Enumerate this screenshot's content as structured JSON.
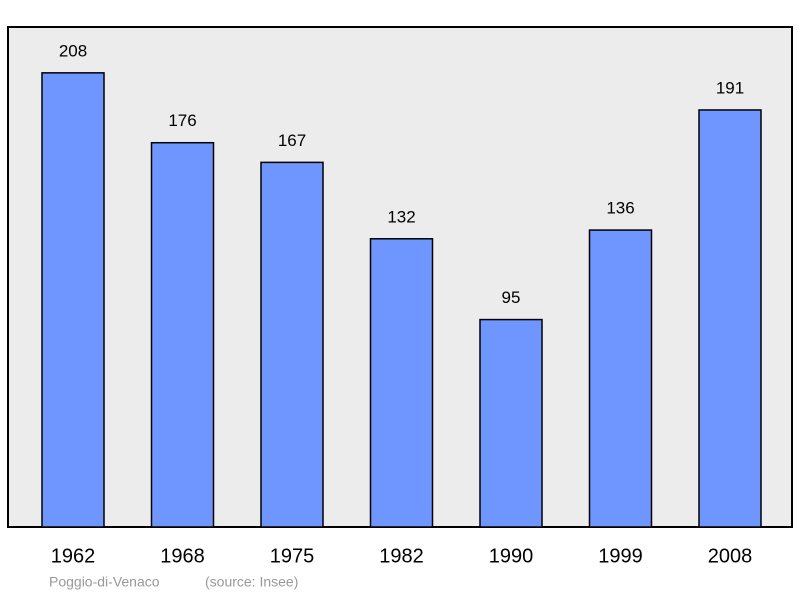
{
  "chart_data": {
    "type": "bar",
    "title": "Poggio-di-Venaco",
    "source": "(source: Insee)",
    "categories": [
      "1962",
      "1968",
      "1975",
      "1982",
      "1990",
      "1999",
      "2008"
    ],
    "values": [
      208,
      176,
      167,
      132,
      95,
      136,
      191
    ],
    "color": "#6f96ff",
    "ylim": [
      0,
      229
    ]
  }
}
